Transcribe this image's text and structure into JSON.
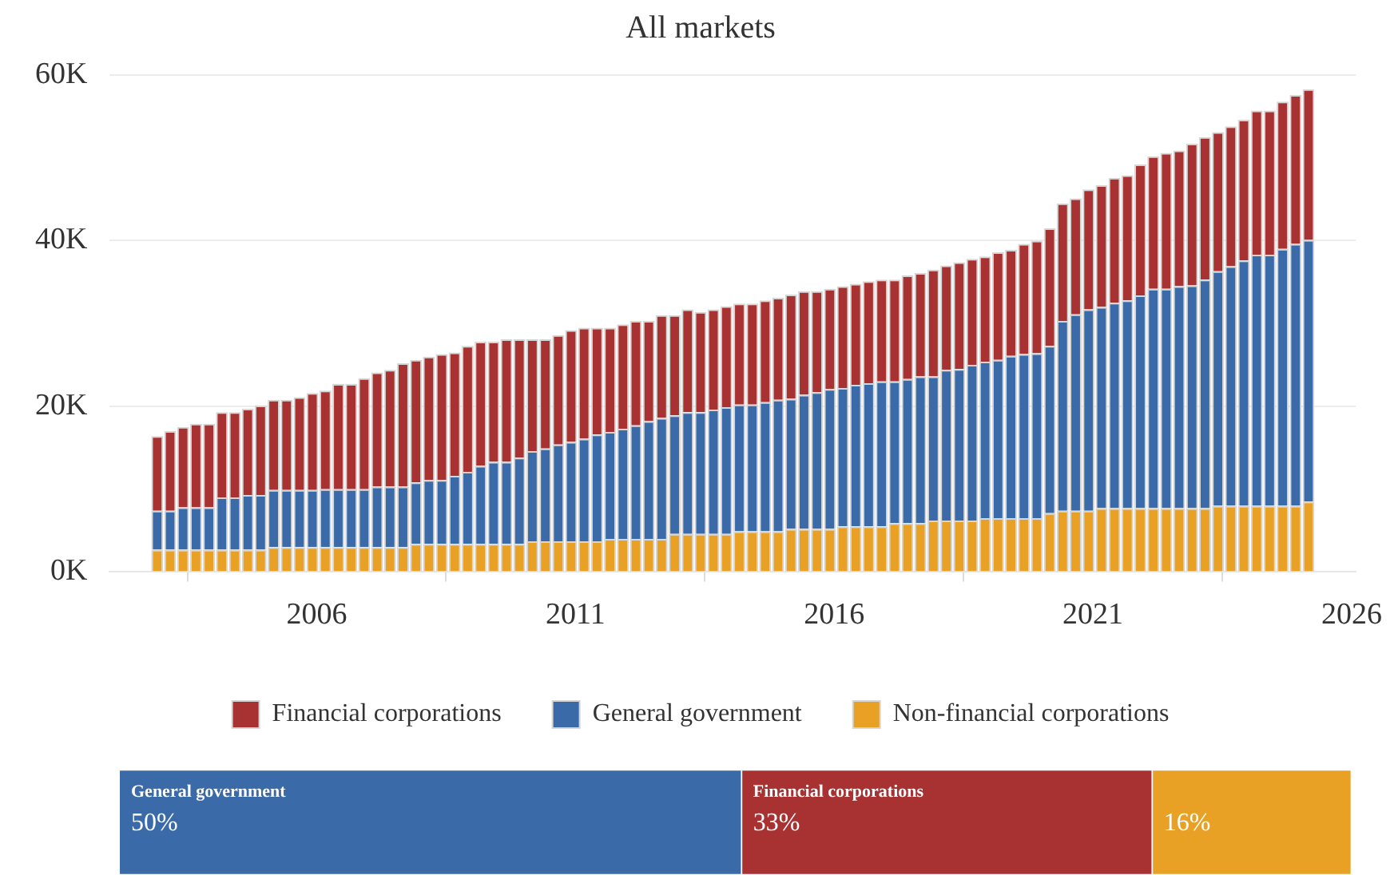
{
  "chart_data": [
    {
      "type": "bar",
      "title": "All markets",
      "stacked": true,
      "grid": "y",
      "legend": "bottom",
      "x": [
        "2002-12",
        "2003-03",
        "2003-06",
        "2003-09",
        "2003-12",
        "2004-03",
        "2004-06",
        "2004-09",
        "2004-12",
        "2005-03",
        "2005-06",
        "2005-09",
        "2005-12",
        "2006-03",
        "2006-06",
        "2006-09",
        "2006-12",
        "2007-03",
        "2007-06",
        "2007-09",
        "2007-12",
        "2008-03",
        "2008-06",
        "2008-09",
        "2008-12",
        "2009-03",
        "2009-06",
        "2009-09",
        "2009-12",
        "2010-03",
        "2010-06",
        "2010-09",
        "2010-12",
        "2011-03",
        "2011-06",
        "2011-09",
        "2011-12",
        "2012-03",
        "2012-06",
        "2012-09",
        "2012-12",
        "2013-03",
        "2013-06",
        "2013-09",
        "2013-12",
        "2014-03",
        "2014-06",
        "2014-09",
        "2014-12",
        "2015-03",
        "2015-06",
        "2015-09",
        "2015-12",
        "2016-03",
        "2016-06",
        "2016-09",
        "2016-12",
        "2017-03",
        "2017-06",
        "2017-09",
        "2017-12",
        "2018-03",
        "2018-06",
        "2018-09",
        "2018-12",
        "2019-03",
        "2019-06",
        "2019-09",
        "2019-12",
        "2020-03",
        "2020-06",
        "2020-09",
        "2020-12",
        "2021-03",
        "2021-06",
        "2021-09",
        "2021-12",
        "2022-03",
        "2022-06",
        "2022-09",
        "2022-12",
        "2023-03",
        "2023-06",
        "2023-09",
        "2023-12",
        "2024-03",
        "2024-06",
        "2024-09",
        "2024-12",
        "2025-03"
      ],
      "xlim": [
        "2002-01",
        "2026-02"
      ],
      "xticks": [
        "2006",
        "2011",
        "2016",
        "2021",
        "2026"
      ],
      "ylim": [
        0,
        60
      ],
      "yticks": [
        {
          "value": 0,
          "label": "0K"
        },
        {
          "value": 20,
          "label": "20K"
        },
        {
          "value": 40,
          "label": "40K"
        },
        {
          "value": 60,
          "label": "60K"
        }
      ],
      "series": [
        {
          "name": "Non-financial corporations",
          "color": "#e8a025",
          "values": [
            2.7,
            2.7,
            2.7,
            2.7,
            2.7,
            2.7,
            2.7,
            2.7,
            2.7,
            3.0,
            3.0,
            3.0,
            3.0,
            3.0,
            3.0,
            3.0,
            3.0,
            3.0,
            3.0,
            3.0,
            3.4,
            3.4,
            3.4,
            3.4,
            3.4,
            3.4,
            3.4,
            3.4,
            3.4,
            3.7,
            3.7,
            3.7,
            3.7,
            3.7,
            3.7,
            4.0,
            4.0,
            4.0,
            4.0,
            4.0,
            4.6,
            4.6,
            4.6,
            4.6,
            4.6,
            4.9,
            4.9,
            4.9,
            4.9,
            5.2,
            5.2,
            5.2,
            5.2,
            5.5,
            5.5,
            5.5,
            5.5,
            5.9,
            5.9,
            5.9,
            6.2,
            6.2,
            6.2,
            6.2,
            6.5,
            6.5,
            6.5,
            6.5,
            6.5,
            7.1,
            7.4,
            7.4,
            7.4,
            7.7,
            7.7,
            7.7,
            7.7,
            7.7,
            7.7,
            7.7,
            7.7,
            7.7,
            8.0,
            8.0,
            8.0,
            8.0,
            8.0,
            8.0,
            8.0,
            8.5
          ]
        },
        {
          "name": "General government",
          "color": "#3a6aa8",
          "values": [
            4.7,
            4.7,
            5.1,
            5.1,
            5.1,
            6.3,
            6.3,
            6.6,
            6.6,
            6.9,
            6.9,
            6.9,
            6.9,
            7.0,
            7.0,
            7.0,
            7.0,
            7.3,
            7.3,
            7.3,
            7.4,
            7.7,
            7.7,
            8.2,
            8.7,
            9.4,
            9.9,
            9.9,
            10.4,
            10.9,
            11.2,
            11.7,
            12.0,
            12.4,
            12.9,
            12.9,
            13.3,
            13.7,
            14.2,
            14.6,
            14.3,
            14.7,
            14.7,
            15.0,
            15.3,
            15.3,
            15.3,
            15.6,
            15.9,
            15.7,
            16.2,
            16.5,
            16.9,
            16.7,
            17.1,
            17.3,
            17.5,
            17.1,
            17.4,
            17.7,
            17.4,
            18.2,
            18.3,
            18.8,
            18.9,
            19.1,
            19.6,
            19.8,
            19.9,
            20.2,
            22.9,
            23.7,
            24.3,
            24.3,
            24.8,
            25.1,
            25.7,
            26.5,
            26.5,
            26.8,
            26.9,
            27.6,
            28.3,
            28.9,
            29.6,
            30.3,
            30.3,
            31.0,
            31.6,
            31.6
          ]
        },
        {
          "name": "Financial corporations",
          "color": "#a83232",
          "values": [
            9.0,
            9.6,
            9.7,
            10.1,
            10.1,
            10.3,
            10.3,
            10.4,
            10.8,
            10.9,
            10.9,
            11.2,
            11.7,
            11.9,
            12.7,
            12.7,
            13.4,
            13.8,
            14.1,
            14.9,
            14.8,
            14.9,
            15.2,
            14.9,
            15.2,
            15.0,
            14.5,
            14.8,
            14.3,
            13.5,
            13.2,
            13.2,
            13.5,
            13.4,
            12.9,
            12.6,
            12.6,
            12.6,
            12.1,
            12.4,
            12.1,
            12.4,
            12.1,
            12.1,
            12.2,
            12.2,
            12.2,
            12.3,
            12.3,
            12.6,
            12.5,
            12.2,
            12.1,
            12.3,
            12.2,
            12.3,
            12.3,
            12.3,
            12.5,
            12.5,
            12.9,
            12.6,
            12.9,
            12.8,
            12.7,
            13.0,
            12.8,
            13.3,
            13.6,
            14.2,
            14.2,
            14.0,
            14.5,
            14.7,
            15.1,
            15.1,
            15.8,
            16.0,
            16.4,
            16.4,
            17.1,
            17.2,
            16.8,
            16.9,
            17.0,
            17.4,
            17.4,
            17.8,
            18.0,
            18.2
          ]
        }
      ]
    },
    {
      "type": "bar",
      "orientation": "horizontal",
      "stacked": true,
      "categories": [
        null
      ],
      "xlim": [
        0,
        99
      ],
      "tick_labels": false,
      "series": [
        {
          "name": "General government",
          "color": "#3a6aa8",
          "values": [
            50
          ],
          "value_labels": [
            "50%"
          ]
        },
        {
          "name": "Financial corporations",
          "color": "#a83232",
          "values": [
            33
          ],
          "value_labels": [
            "33%"
          ]
        },
        {
          "color": "#e8a025",
          "values": [
            16
          ],
          "value_labels": [
            "16%"
          ]
        }
      ]
    }
  ]
}
